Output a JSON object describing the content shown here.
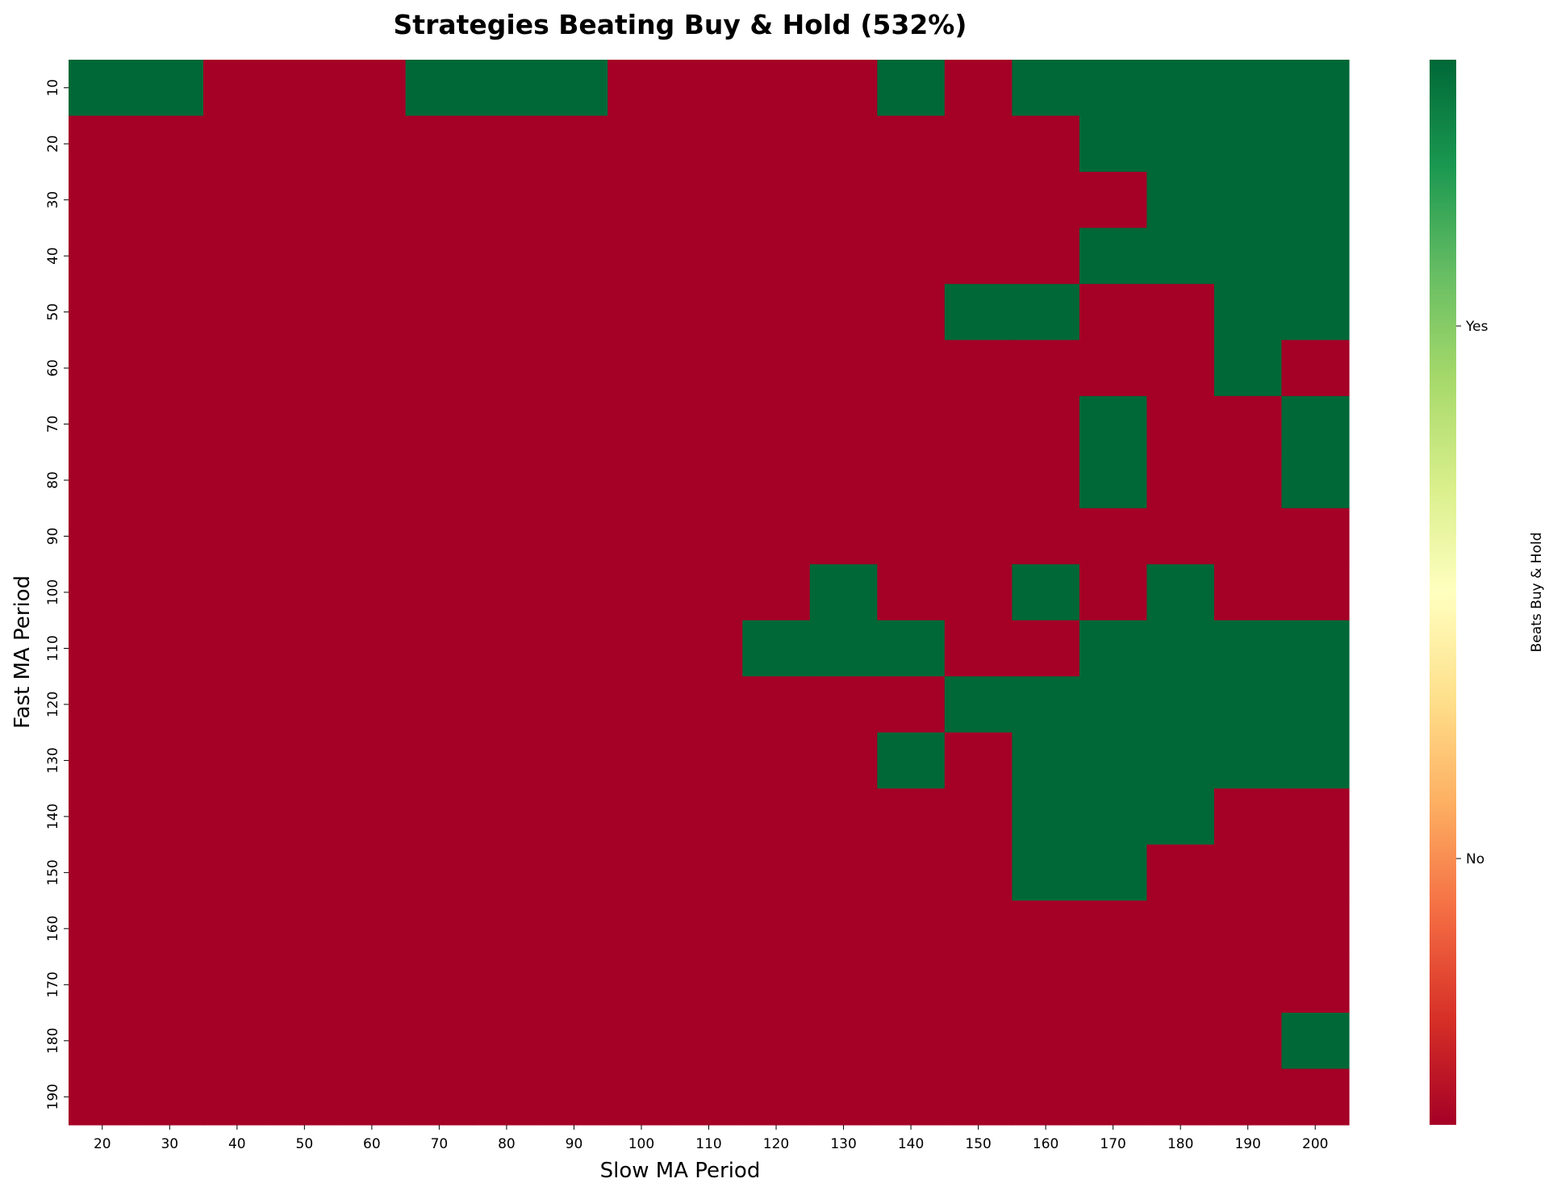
{
  "chart_data": {
    "type": "heatmap",
    "title": "Strategies Beating Buy & Hold (532%)",
    "xlabel": "Slow MA Period",
    "ylabel": "Fast MA Period",
    "x": [
      20,
      30,
      40,
      50,
      60,
      70,
      80,
      90,
      100,
      110,
      120,
      130,
      140,
      150,
      160,
      170,
      180,
      190,
      200
    ],
    "y": [
      10,
      20,
      30,
      40,
      50,
      60,
      70,
      80,
      90,
      100,
      110,
      120,
      130,
      140,
      150,
      160,
      170,
      180,
      190
    ],
    "values": [
      [
        1,
        1,
        0,
        0,
        0,
        1,
        1,
        1,
        0,
        0,
        0,
        0,
        1,
        0,
        1,
        1,
        1,
        1,
        1
      ],
      [
        0,
        0,
        0,
        0,
        0,
        0,
        0,
        0,
        0,
        0,
        0,
        0,
        0,
        0,
        0,
        1,
        1,
        1,
        1
      ],
      [
        0,
        0,
        0,
        0,
        0,
        0,
        0,
        0,
        0,
        0,
        0,
        0,
        0,
        0,
        0,
        0,
        1,
        1,
        1
      ],
      [
        0,
        0,
        0,
        0,
        0,
        0,
        0,
        0,
        0,
        0,
        0,
        0,
        0,
        0,
        0,
        1,
        1,
        1,
        1
      ],
      [
        0,
        0,
        0,
        0,
        0,
        0,
        0,
        0,
        0,
        0,
        0,
        0,
        0,
        1,
        1,
        0,
        0,
        1,
        1
      ],
      [
        0,
        0,
        0,
        0,
        0,
        0,
        0,
        0,
        0,
        0,
        0,
        0,
        0,
        0,
        0,
        0,
        0,
        1,
        0
      ],
      [
        0,
        0,
        0,
        0,
        0,
        0,
        0,
        0,
        0,
        0,
        0,
        0,
        0,
        0,
        0,
        1,
        0,
        0,
        1
      ],
      [
        0,
        0,
        0,
        0,
        0,
        0,
        0,
        0,
        0,
        0,
        0,
        0,
        0,
        0,
        0,
        1,
        0,
        0,
        1
      ],
      [
        0,
        0,
        0,
        0,
        0,
        0,
        0,
        0,
        0,
        0,
        0,
        0,
        0,
        0,
        0,
        0,
        0,
        0,
        0
      ],
      [
        0,
        0,
        0,
        0,
        0,
        0,
        0,
        0,
        0,
        0,
        0,
        1,
        0,
        0,
        1,
        0,
        1,
        0,
        0
      ],
      [
        0,
        0,
        0,
        0,
        0,
        0,
        0,
        0,
        0,
        0,
        1,
        1,
        1,
        0,
        0,
        1,
        1,
        1,
        1
      ],
      [
        0,
        0,
        0,
        0,
        0,
        0,
        0,
        0,
        0,
        0,
        0,
        0,
        0,
        1,
        1,
        1,
        1,
        1,
        1
      ],
      [
        0,
        0,
        0,
        0,
        0,
        0,
        0,
        0,
        0,
        0,
        0,
        0,
        1,
        0,
        1,
        1,
        1,
        1,
        1
      ],
      [
        0,
        0,
        0,
        0,
        0,
        0,
        0,
        0,
        0,
        0,
        0,
        0,
        0,
        0,
        1,
        1,
        1,
        0,
        0
      ],
      [
        0,
        0,
        0,
        0,
        0,
        0,
        0,
        0,
        0,
        0,
        0,
        0,
        0,
        0,
        1,
        1,
        0,
        0,
        0
      ],
      [
        0,
        0,
        0,
        0,
        0,
        0,
        0,
        0,
        0,
        0,
        0,
        0,
        0,
        0,
        0,
        0,
        0,
        0,
        0
      ],
      [
        0,
        0,
        0,
        0,
        0,
        0,
        0,
        0,
        0,
        0,
        0,
        0,
        0,
        0,
        0,
        0,
        0,
        0,
        0
      ],
      [
        0,
        0,
        0,
        0,
        0,
        0,
        0,
        0,
        0,
        0,
        0,
        0,
        0,
        0,
        0,
        0,
        0,
        0,
        1
      ],
      [
        0,
        0,
        0,
        0,
        0,
        0,
        0,
        0,
        0,
        0,
        0,
        0,
        0,
        0,
        0,
        0,
        0,
        0,
        0
      ]
    ],
    "colorbar": {
      "label": "Beats Buy & Hold",
      "colormap": "RdYlGn",
      "range": [
        0,
        1
      ],
      "ticks": [
        {
          "value": 0.25,
          "label": "No"
        },
        {
          "value": 0.75,
          "label": "Yes"
        }
      ]
    },
    "colors": {
      "no": "#a50026",
      "yes": "#006837"
    }
  }
}
